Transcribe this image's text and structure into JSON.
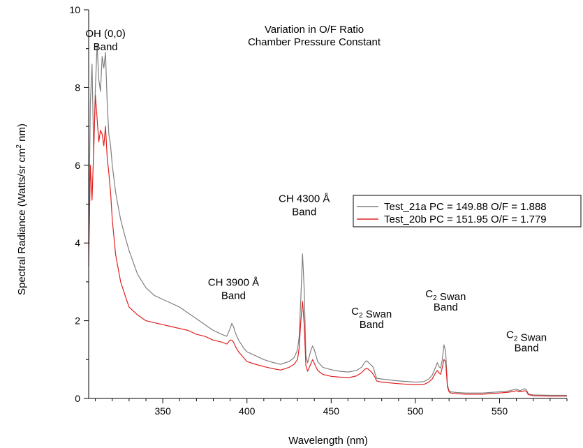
{
  "chart_data": {
    "type": "line",
    "title_lines": [
      "Variation in O/F Ratio",
      "Chamber Pressure Constant"
    ],
    "xlabel": "Wavelength (nm)",
    "ylabel": {
      "pre": "Spectral Radiance (Watts/sr cm",
      "sup": "2",
      "post": " nm)"
    },
    "xlim": [
      306,
      590
    ],
    "ylim": [
      0,
      10
    ],
    "xticks": [
      350,
      400,
      450,
      500,
      550
    ],
    "yticks": [
      0,
      2,
      4,
      6,
      8,
      10
    ],
    "legend_position": "right",
    "series": [
      {
        "name": "Test_21a PC = 149.88 O/F = 1.888",
        "color": "#7f7f7f",
        "x": [
          306,
          307,
          308,
          309,
          310,
          311,
          312,
          313,
          314,
          315,
          316,
          317,
          318,
          319,
          320,
          322,
          325,
          328,
          330,
          335,
          340,
          345,
          350,
          355,
          360,
          365,
          370,
          375,
          380,
          385,
          388,
          390,
          391,
          392,
          393,
          395,
          398,
          400,
          405,
          410,
          415,
          420,
          425,
          428,
          430,
          431,
          432,
          433,
          434,
          435,
          436,
          438,
          439,
          440,
          442,
          445,
          450,
          455,
          460,
          465,
          468,
          470,
          471,
          472,
          474,
          475,
          476,
          477,
          480,
          490,
          500,
          505,
          508,
          510,
          512,
          513,
          514,
          515,
          516,
          517,
          518,
          519,
          520,
          521,
          525,
          530,
          540,
          550,
          555,
          558,
          560,
          562,
          565,
          566,
          567,
          570,
          580,
          590
        ],
        "y": [
          4.0,
          7.6,
          8.6,
          6.3,
          8.0,
          9.1,
          8.2,
          7.9,
          8.8,
          8.5,
          8.9,
          7.6,
          6.8,
          6.5,
          6.0,
          5.3,
          4.6,
          4.1,
          3.8,
          3.2,
          2.85,
          2.65,
          2.55,
          2.45,
          2.35,
          2.2,
          2.05,
          1.9,
          1.75,
          1.65,
          1.6,
          1.8,
          1.93,
          1.85,
          1.7,
          1.5,
          1.3,
          1.2,
          1.1,
          1.0,
          0.93,
          0.88,
          0.95,
          1.05,
          1.25,
          1.6,
          2.6,
          3.72,
          2.8,
          1.1,
          0.92,
          1.25,
          1.35,
          1.25,
          0.95,
          0.8,
          0.74,
          0.7,
          0.68,
          0.72,
          0.8,
          0.93,
          0.97,
          0.93,
          0.85,
          0.8,
          0.65,
          0.52,
          0.5,
          0.45,
          0.42,
          0.43,
          0.5,
          0.6,
          0.8,
          0.92,
          0.82,
          0.78,
          1.0,
          1.38,
          1.2,
          0.35,
          0.2,
          0.17,
          0.15,
          0.14,
          0.14,
          0.17,
          0.19,
          0.22,
          0.24,
          0.2,
          0.25,
          0.22,
          0.12,
          0.09,
          0.08,
          0.08
        ]
      },
      {
        "name": "Test_20b PC = 151.95 O/F = 1.779",
        "color": "#e02020",
        "x": [
          306,
          307,
          308,
          309,
          310,
          311,
          312,
          313,
          314,
          315,
          316,
          317,
          318,
          319,
          320,
          322,
          325,
          328,
          330,
          335,
          340,
          345,
          350,
          355,
          360,
          365,
          370,
          375,
          380,
          385,
          388,
          390,
          391,
          392,
          393,
          395,
          398,
          400,
          405,
          410,
          415,
          420,
          425,
          428,
          430,
          431,
          432,
          433,
          434,
          435,
          436,
          438,
          439,
          440,
          442,
          445,
          450,
          455,
          460,
          465,
          468,
          470,
          471,
          472,
          474,
          475,
          476,
          477,
          480,
          490,
          500,
          505,
          508,
          510,
          512,
          513,
          514,
          515,
          516,
          517,
          518,
          519,
          520,
          521,
          525,
          530,
          540,
          550,
          555,
          558,
          560,
          562,
          565,
          566,
          567,
          570,
          580,
          590
        ],
        "y": [
          3.4,
          6.0,
          5.1,
          6.4,
          7.8,
          7.2,
          6.6,
          6.9,
          6.8,
          6.5,
          7.0,
          6.2,
          5.8,
          5.3,
          4.6,
          3.7,
          3.0,
          2.6,
          2.35,
          2.15,
          2.0,
          1.95,
          1.9,
          1.85,
          1.8,
          1.75,
          1.65,
          1.6,
          1.5,
          1.45,
          1.4,
          1.5,
          1.5,
          1.45,
          1.35,
          1.2,
          1.05,
          0.95,
          0.88,
          0.82,
          0.77,
          0.73,
          0.8,
          0.88,
          1.0,
          1.3,
          2.0,
          2.5,
          1.9,
          0.85,
          0.7,
          0.9,
          1.0,
          0.9,
          0.72,
          0.62,
          0.57,
          0.55,
          0.53,
          0.58,
          0.66,
          0.75,
          0.78,
          0.75,
          0.68,
          0.62,
          0.55,
          0.45,
          0.42,
          0.38,
          0.35,
          0.36,
          0.42,
          0.5,
          0.66,
          0.72,
          0.66,
          0.62,
          0.8,
          1.0,
          0.95,
          0.3,
          0.17,
          0.14,
          0.12,
          0.11,
          0.11,
          0.14,
          0.16,
          0.18,
          0.2,
          0.17,
          0.2,
          0.18,
          0.1,
          0.07,
          0.06,
          0.06
        ]
      }
    ],
    "annotations": [
      {
        "id": "oh",
        "lines": [
          [
            {
              "t": "OH (0,0)"
            }
          ],
          [
            {
              "t": "Band"
            }
          ]
        ],
        "x": 316,
        "y": 9.3
      },
      {
        "id": "ch3900",
        "lines": [
          [
            {
              "t": "CH 3900 Å"
            }
          ],
          [
            {
              "t": "Band"
            }
          ]
        ],
        "x": 392,
        "y": 2.9
      },
      {
        "id": "ch4300",
        "lines": [
          [
            {
              "t": "CH 4300 Å"
            }
          ],
          [
            {
              "t": "Band"
            }
          ]
        ],
        "x": 434,
        "y": 5.05
      },
      {
        "id": "swan1",
        "lines": [
          [
            {
              "t": "C"
            },
            {
              "t": "2",
              "sub": true
            },
            {
              "t": " Swan"
            }
          ],
          [
            {
              "t": "Band"
            }
          ]
        ],
        "x": 474,
        "y": 2.15
      },
      {
        "id": "swan2",
        "lines": [
          [
            {
              "t": "C"
            },
            {
              "t": "2",
              "sub": true
            },
            {
              "t": " Swan"
            }
          ],
          [
            {
              "t": "Band"
            }
          ]
        ],
        "x": 518,
        "y": 2.6
      },
      {
        "id": "swan3",
        "lines": [
          [
            {
              "t": "C"
            },
            {
              "t": "2",
              "sub": true
            },
            {
              "t": " Swan"
            }
          ],
          [
            {
              "t": "Band"
            }
          ]
        ],
        "x": 566,
        "y": 1.55
      }
    ]
  }
}
